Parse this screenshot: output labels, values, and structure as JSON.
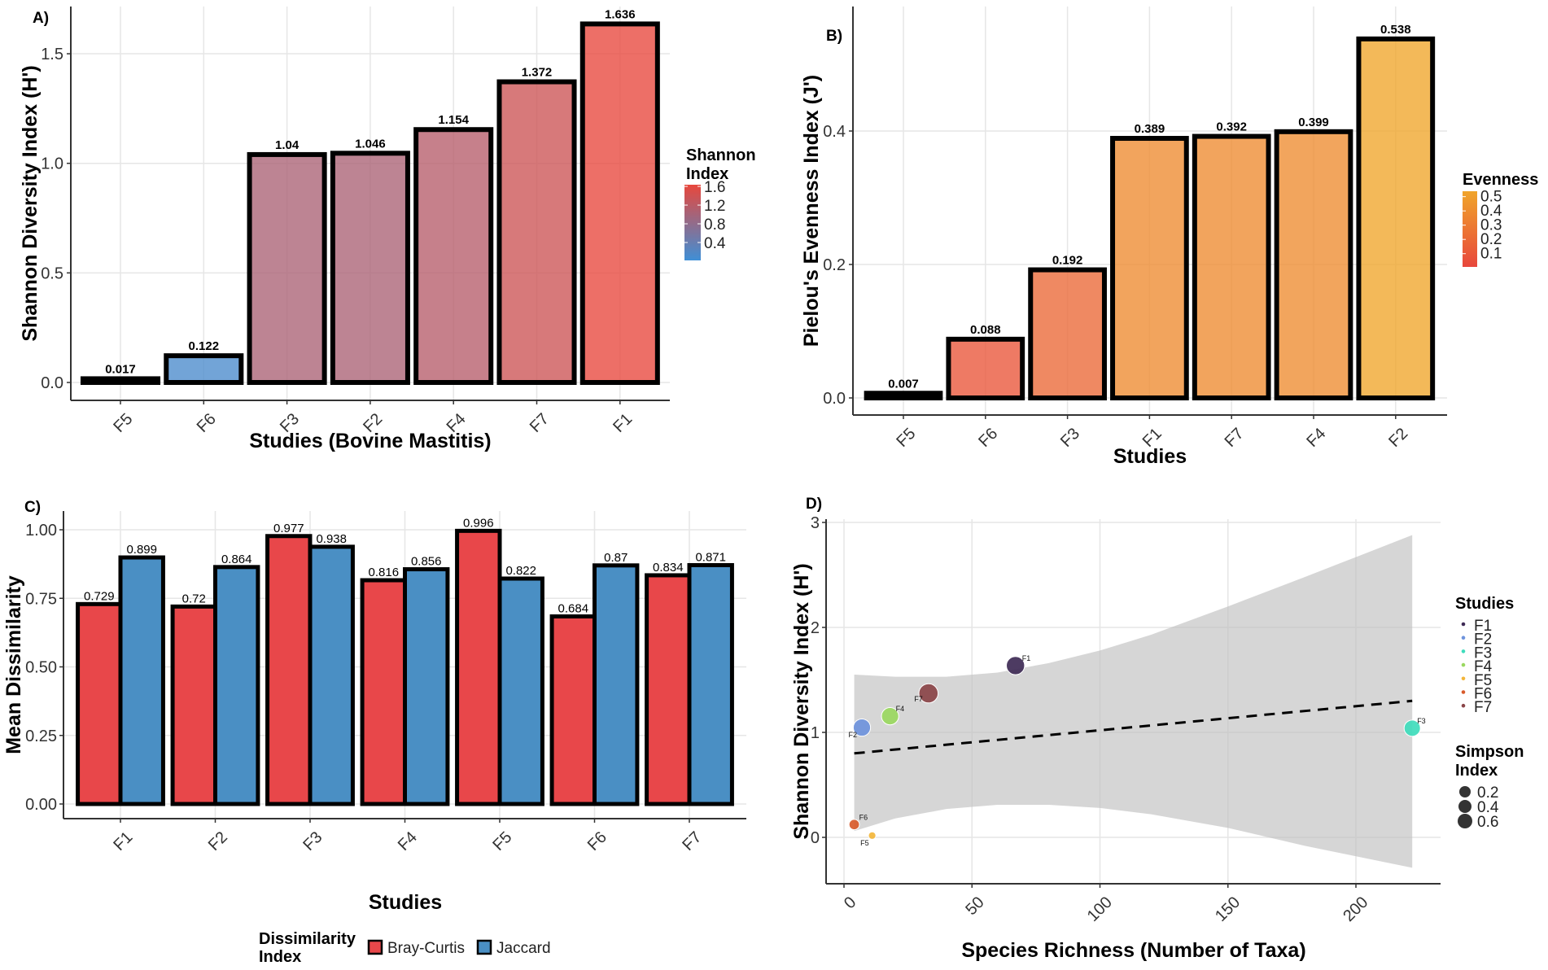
{
  "figure": {
    "description": "Four-panel diversity analysis of bovine mastitis studies"
  },
  "chart_data": [
    {
      "id": "A",
      "type": "bar",
      "panel_label": "A)",
      "title": "",
      "xlabel": "Studies (Bovine Mastitis)",
      "ylabel": "Shannon Diversity Index (H')",
      "categories": [
        "F5",
        "F6",
        "F3",
        "F2",
        "F4",
        "F7",
        "F1"
      ],
      "values": [
        0.017,
        0.122,
        1.04,
        1.046,
        1.154,
        1.372,
        1.636
      ],
      "value_labels": [
        "0.017",
        "0.122",
        "1.04",
        "1.046",
        "1.154",
        "1.372",
        "1.636"
      ],
      "ylim": [
        -0.08,
        1.7
      ],
      "yticks": [
        0.0,
        0.5,
        1.0,
        1.5
      ],
      "ytick_labels": [
        "0.0",
        "0.5",
        "1.0",
        "1.5"
      ],
      "grid": true,
      "legend": {
        "title": "Shannon\nIndex",
        "title_lines": [
          "Shannon",
          "Index"
        ],
        "type": "colorbar",
        "ticks": [
          "1.6",
          "1.2",
          "0.8",
          "0.4"
        ],
        "tick_values": [
          1.6,
          1.2,
          0.8,
          0.4
        ],
        "range": [
          0.017,
          1.636
        ],
        "colors": {
          "low": "#3f8fd6",
          "high": "#e8473c"
        },
        "placement": "right"
      }
    },
    {
      "id": "B",
      "type": "bar",
      "panel_label": "B)",
      "title": "",
      "xlabel": "Studies",
      "ylabel": "Pielou's Evenness Index (J')",
      "categories": [
        "F5",
        "F6",
        "F3",
        "F1",
        "F7",
        "F4",
        "F2"
      ],
      "values": [
        0.007,
        0.088,
        0.192,
        0.389,
        0.392,
        0.399,
        0.538
      ],
      "value_labels": [
        "0.007",
        "0.088",
        "0.192",
        "0.389",
        "0.392",
        "0.399",
        "0.538"
      ],
      "ylim": [
        -0.03,
        0.56
      ],
      "yticks": [
        0.0,
        0.2,
        0.4
      ],
      "ytick_labels": [
        "0.0",
        "0.2",
        "0.4"
      ],
      "grid": true,
      "legend": {
        "title": "Evenness",
        "type": "colorbar",
        "ticks": [
          "0.5",
          "0.4",
          "0.3",
          "0.2",
          "0.1"
        ],
        "tick_values": [
          0.5,
          0.4,
          0.3,
          0.2,
          0.1
        ],
        "range": [
          0.007,
          0.538
        ],
        "colors": {
          "low": "#e8473c",
          "high": "#f0a52a"
        },
        "placement": "right"
      }
    },
    {
      "id": "C",
      "type": "bar",
      "panel_label": "C)",
      "title": "",
      "xlabel": "Studies",
      "ylabel": "Mean Dissimilarity",
      "categories": [
        "F1",
        "F2",
        "F3",
        "F4",
        "F5",
        "F6",
        "F7"
      ],
      "series": [
        {
          "name": "Bray-Curtis",
          "color": "#e8474a",
          "values": [
            0.729,
            0.72,
            0.977,
            0.816,
            0.996,
            0.684,
            0.834
          ],
          "value_labels": [
            "0.729",
            "0.72",
            "0.977",
            "0.816",
            "0.996",
            "0.684",
            "0.834"
          ]
        },
        {
          "name": "Jaccard",
          "color": "#4a8fc4",
          "values": [
            0.899,
            0.864,
            0.938,
            0.856,
            0.822,
            0.87,
            0.871
          ],
          "value_labels": [
            "0.899",
            "0.864",
            "0.938",
            "0.856",
            "0.822",
            "0.87",
            "0.871"
          ]
        }
      ],
      "ylim": [
        -0.05,
        1.04
      ],
      "yticks": [
        0.0,
        0.25,
        0.5,
        0.75,
        1.0
      ],
      "ytick_labels": [
        "0.00",
        "0.25",
        "0.50",
        "0.75",
        "1.00"
      ],
      "grid": true,
      "legend": {
        "title_lines": [
          "Dissimilarity",
          "Index"
        ],
        "entries": [
          "Bray-Curtis",
          "Jaccard"
        ],
        "placement": "bottom"
      }
    },
    {
      "id": "D",
      "type": "scatter",
      "panel_label": "D)",
      "title": "",
      "xlabel": "Species Richness (Number of Taxa)",
      "ylabel": "Shannon Diversity Index (H')",
      "xlim": [
        -7,
        233
      ],
      "ylim": [
        -0.45,
        3.03
      ],
      "xticks": [
        0,
        50,
        100,
        150,
        200
      ],
      "xtick_labels": [
        "0",
        "50",
        "100",
        "150",
        "200"
      ],
      "yticks": [
        0,
        1,
        2,
        3
      ],
      "ytick_labels": [
        "0",
        "1",
        "2",
        "3"
      ],
      "grid": true,
      "points": [
        {
          "label": "F1",
          "x": 67,
          "y": 1.636,
          "simpson": 0.6,
          "color": "#3e2a55"
        },
        {
          "label": "F2",
          "x": 7,
          "y": 1.046,
          "simpson": 0.55,
          "color": "#6e93dc"
        },
        {
          "label": "F3",
          "x": 222,
          "y": 1.04,
          "simpson": 0.5,
          "color": "#3fdcbc"
        },
        {
          "label": "F4",
          "x": 18,
          "y": 1.154,
          "simpson": 0.55,
          "color": "#9ad860"
        },
        {
          "label": "F5",
          "x": 11,
          "y": 0.017,
          "simpson": 0.05,
          "color": "#f3b63a"
        },
        {
          "label": "F6",
          "x": 4,
          "y": 0.122,
          "simpson": 0.2,
          "color": "#d85a2a"
        },
        {
          "label": "F7",
          "x": 33,
          "y": 1.372,
          "simpson": 0.65,
          "color": "#8a4448"
        }
      ],
      "trend_line": {
        "style": "dashed",
        "x": [
          4,
          222
        ],
        "y": [
          0.8,
          1.3
        ]
      },
      "confidence_band": {
        "x": [
          4,
          20,
          40,
          60,
          80,
          100,
          120,
          150,
          180,
          200,
          222
        ],
        "upper": [
          1.55,
          1.53,
          1.53,
          1.57,
          1.66,
          1.78,
          1.93,
          2.2,
          2.48,
          2.67,
          2.88
        ],
        "lower": [
          0.06,
          0.18,
          0.27,
          0.31,
          0.31,
          0.28,
          0.22,
          0.09,
          -0.08,
          -0.18,
          -0.29
        ]
      },
      "legend": {
        "studies_title": "Studies",
        "studies": [
          "F1",
          "F2",
          "F3",
          "F4",
          "F5",
          "F6",
          "F7"
        ],
        "size_title_lines": [
          "Simpson",
          "Index"
        ],
        "size_labels": [
          "0.2",
          "0.4",
          "0.6"
        ],
        "size_values": [
          0.2,
          0.4,
          0.6
        ],
        "placement": "right"
      }
    }
  ]
}
